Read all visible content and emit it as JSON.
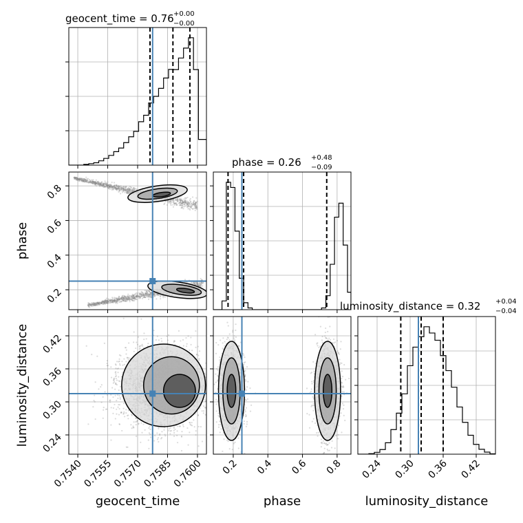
{
  "chart_data": {
    "type": "corner",
    "parameters": [
      "geocent_time",
      "phase",
      "luminosity_distance"
    ],
    "axis_labels": {
      "geocent_time": "geocent_time",
      "phase": "phase",
      "luminosity_distance": "luminosity_distance"
    },
    "titles": [
      {
        "param": "geocent_time",
        "text": "geocent_time = 0.76",
        "upper": "+0.00",
        "lower": "−0.00"
      },
      {
        "param": "phase",
        "text": "phase = 0.26",
        "upper": "+0.48",
        "lower": "−0.09"
      },
      {
        "param": "luminosity_distance",
        "text": "luminosity_distance = 0.32",
        "upper": "+0.04",
        "lower": "−0.04"
      }
    ],
    "ranges": {
      "geocent_time": [
        0.75355,
        0.76045
      ],
      "phase": [
        0.085,
        0.88
      ],
      "luminosity_distance": [
        0.205,
        0.455
      ]
    },
    "ticks": {
      "geocent_time": [
        {
          "v": 0.754,
          "label": "0.7540"
        },
        {
          "v": 0.7555,
          "label": "0.7555"
        },
        {
          "v": 0.757,
          "label": "0.7570"
        },
        {
          "v": 0.7585,
          "label": "0.7585"
        },
        {
          "v": 0.76,
          "label": "0.7600"
        }
      ],
      "phase": [
        {
          "v": 0.2,
          "label": "0.2"
        },
        {
          "v": 0.4,
          "label": "0.4"
        },
        {
          "v": 0.6,
          "label": "0.6"
        },
        {
          "v": 0.8,
          "label": "0.8"
        }
      ],
      "luminosity_distance": [
        {
          "v": 0.24,
          "label": "0.24"
        },
        {
          "v": 0.3,
          "label": "0.30"
        },
        {
          "v": 0.36,
          "label": "0.36"
        },
        {
          "v": 0.42,
          "label": "0.42"
        }
      ]
    },
    "truths": {
      "geocent_time": 0.75775,
      "phase": 0.25,
      "luminosity_distance": 0.315
    },
    "quantiles": {
      "geocent_time": [
        0.75762,
        0.75877,
        0.75962
      ],
      "phase": [
        0.17,
        0.26,
        0.74
      ],
      "luminosity_distance": [
        0.283,
        0.32,
        0.36
      ]
    },
    "histograms": {
      "geocent_time": {
        "edges": [
          0.75355,
          0.7538,
          0.75405,
          0.7543,
          0.75455,
          0.7548,
          0.75505,
          0.7553,
          0.75555,
          0.7558,
          0.75605,
          0.7563,
          0.75655,
          0.7568,
          0.75705,
          0.7573,
          0.75755,
          0.7578,
          0.75805,
          0.7583,
          0.75855,
          0.7588,
          0.75905,
          0.7593,
          0.75955,
          0.7598,
          0.76005,
          0.76045
        ],
        "counts": [
          0,
          0,
          0,
          0.5,
          1.0,
          1.6,
          2.9,
          4.5,
          6.5,
          9.0,
          11.4,
          15.0,
          18.9,
          22.5,
          28.9,
          33.2,
          41.4,
          45.8,
          51.1,
          58.0,
          63.7,
          63.6,
          71.3,
          77.9,
          84.8,
          63.6,
          17.1
        ]
      },
      "phase": {
        "edges": [
          0.085,
          0.11,
          0.135,
          0.16,
          0.185,
          0.21,
          0.235,
          0.26,
          0.285,
          0.31,
          0.335,
          0.36,
          0.385,
          0.41,
          0.435,
          0.46,
          0.485,
          0.51,
          0.535,
          0.56,
          0.585,
          0.61,
          0.635,
          0.66,
          0.685,
          0.71,
          0.735,
          0.76,
          0.785,
          0.81,
          0.835,
          0.86,
          0.88
        ],
        "counts": [
          0,
          0,
          5,
          73,
          70,
          45,
          18,
          4,
          1,
          0,
          0,
          0,
          0,
          0,
          0,
          0,
          0,
          0,
          0,
          0,
          0,
          0,
          0,
          0,
          0,
          1,
          8,
          26,
          53,
          61,
          37,
          10
        ]
      },
      "luminosity_distance": {
        "edges": [
          0.205,
          0.215,
          0.225,
          0.235,
          0.245,
          0.255,
          0.265,
          0.275,
          0.285,
          0.295,
          0.305,
          0.315,
          0.325,
          0.335,
          0.345,
          0.355,
          0.365,
          0.375,
          0.385,
          0.395,
          0.405,
          0.415,
          0.425,
          0.435,
          0.445,
          0.455
        ],
        "counts": [
          0,
          0,
          0.4,
          1.5,
          3.8,
          9.3,
          20.0,
          33.4,
          49.1,
          72.0,
          87.1,
          95.6,
          103.7,
          98.6,
          92.7,
          80.2,
          68.0,
          54.5,
          38.4,
          25.9,
          15.4,
          8.0,
          4.0,
          1.7,
          0.3
        ]
      }
    },
    "grid": true,
    "colors": {
      "truth": "#4682b4",
      "contour": "#000000",
      "samples": "#888888",
      "grid": "#b0b0b0"
    }
  }
}
